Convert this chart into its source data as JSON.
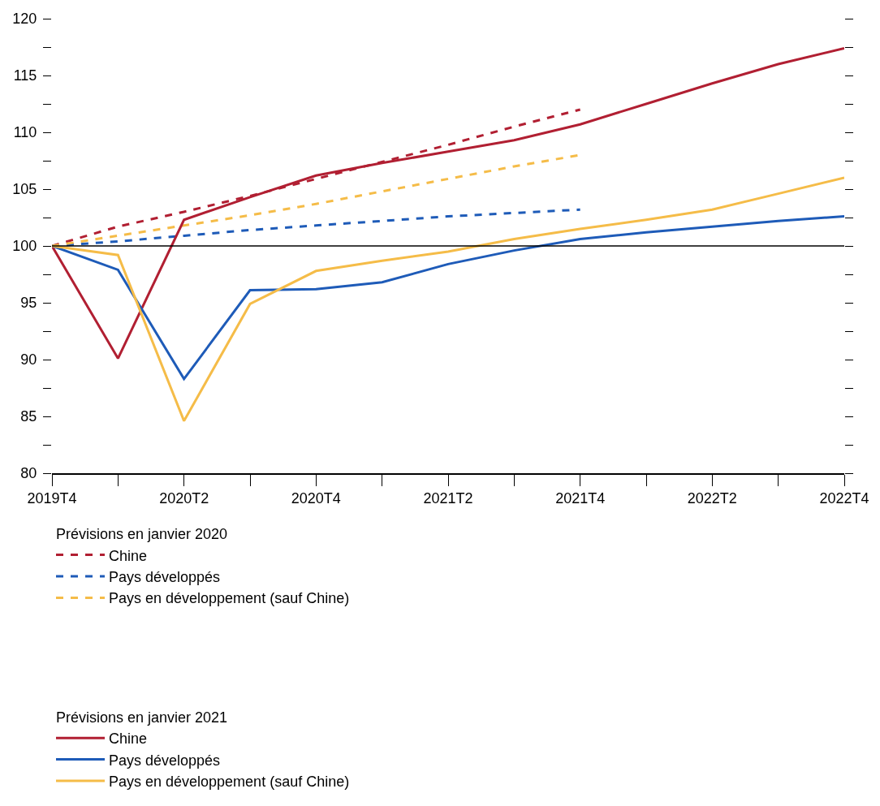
{
  "chart_data": {
    "type": "line",
    "categories": [
      "2019T4",
      null,
      "2020T2",
      null,
      "2020T4",
      null,
      "2021T2",
      null,
      "2021T4",
      null,
      "2022T2",
      null,
      "2022T4"
    ],
    "series": [
      {
        "name": "Chine",
        "color": "#b11f32",
        "line_style": "dashed",
        "values": [
          100,
          101.7,
          103.0,
          104.4,
          105.9,
          107.4,
          108.9,
          110.5,
          112.0,
          null,
          null,
          null,
          null
        ]
      },
      {
        "name": "Pays développés",
        "color": "#1e5bb8",
        "line_style": "dashed",
        "values": [
          100,
          100.4,
          100.9,
          101.4,
          101.8,
          102.2,
          102.6,
          102.9,
          103.2,
          null,
          null,
          null,
          null
        ]
      },
      {
        "name": "Pays en développement (sauf Chine)",
        "color": "#f5bc48",
        "line_style": "dashed",
        "values": [
          100,
          100.9,
          101.8,
          102.7,
          103.7,
          104.8,
          105.9,
          107.0,
          108.0,
          null,
          null,
          null,
          null
        ]
      },
      {
        "name": "Chine",
        "color": "#b11f32",
        "line_style": "solid",
        "values": [
          100,
          90.1,
          102.3,
          104.3,
          106.2,
          107.3,
          108.3,
          109.3,
          110.7,
          112.5,
          114.3,
          116.0,
          117.4
        ]
      },
      {
        "name": "Pays développés",
        "color": "#1e5bb8",
        "line_style": "solid",
        "values": [
          100,
          97.9,
          88.3,
          96.1,
          96.2,
          96.8,
          98.4,
          99.6,
          100.6,
          101.2,
          101.7,
          102.2,
          102.6
        ]
      },
      {
        "name": "Pays en développement (sauf Chine)",
        "color": "#f5bc48",
        "line_style": "solid",
        "values": [
          100,
          99.2,
          84.6,
          94.9,
          97.8,
          98.7,
          99.5,
          100.6,
          101.5,
          102.3,
          103.2,
          104.6,
          106.0
        ]
      }
    ],
    "annotations": [
      "Prévisions en janvier 2020",
      "Prévisions en janvier 2021"
    ],
    "ylim": [
      80,
      120
    ],
    "yticks": [
      80,
      {
        "value": 82.5,
        "label": null
      },
      85,
      {
        "value": 87.5,
        "label": null
      },
      90,
      {
        "value": 92.5,
        "label": null
      },
      95,
      {
        "value": 97.5,
        "label": null
      },
      100,
      {
        "value": 102.5,
        "label": null
      },
      105,
      {
        "value": 107.5,
        "label": null
      },
      110,
      {
        "value": 112.5,
        "label": null
      },
      115,
      {
        "value": 117.5,
        "label": null
      },
      120
    ],
    "ref_lines": [
      {
        "axis": "y",
        "value": 100,
        "color": "#000000"
      }
    ],
    "grid": false,
    "legend": "bottom",
    "marker": "none"
  }
}
